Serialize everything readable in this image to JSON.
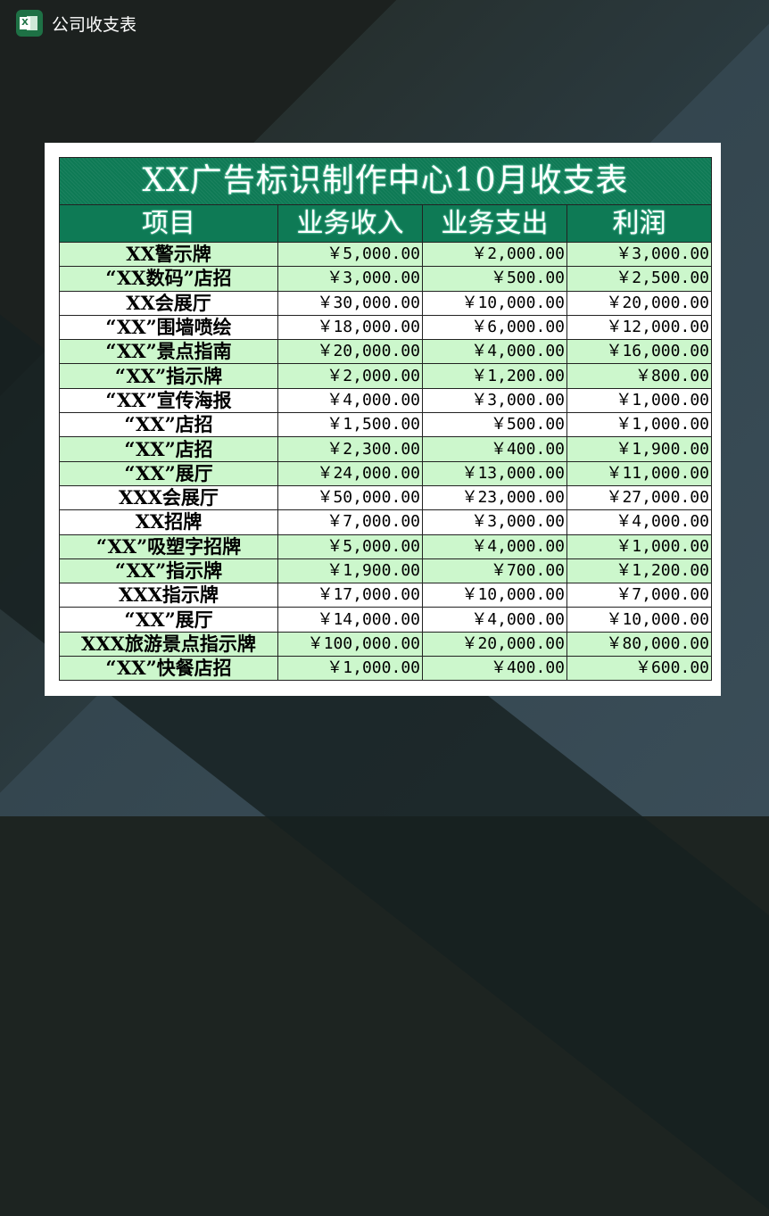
{
  "app": {
    "title": "公司收支表",
    "icon": "excel-icon"
  },
  "sheet": {
    "title": "XX广告标识制作中心10月收支表",
    "headers": [
      "项目",
      "业务收入",
      "业务支出",
      "利润"
    ],
    "rows": [
      [
        "XX警示牌",
        "￥5,000.00",
        "￥2,000.00",
        "￥3,000.00"
      ],
      [
        "“XX数码”店招",
        "￥3,000.00",
        "￥500.00",
        "￥2,500.00"
      ],
      [
        "XX会展厅",
        "￥30,000.00",
        "￥10,000.00",
        "￥20,000.00"
      ],
      [
        "“XX”围墙喷绘",
        "￥18,000.00",
        "￥6,000.00",
        "￥12,000.00"
      ],
      [
        "“XX”景点指南",
        "￥20,000.00",
        "￥4,000.00",
        "￥16,000.00"
      ],
      [
        "“XX”指示牌",
        "￥2,000.00",
        "￥1,200.00",
        "￥800.00"
      ],
      [
        "“XX”宣传海报",
        "￥4,000.00",
        "￥3,000.00",
        "￥1,000.00"
      ],
      [
        "“XX”店招",
        "￥1,500.00",
        "￥500.00",
        "￥1,000.00"
      ],
      [
        "“XX”店招",
        "￥2,300.00",
        "￥400.00",
        "￥1,900.00"
      ],
      [
        "“XX”展厅",
        "￥24,000.00",
        "￥13,000.00",
        "￥11,000.00"
      ],
      [
        "XXX会展厅",
        "￥50,000.00",
        "￥23,000.00",
        "￥27,000.00"
      ],
      [
        "XX招牌",
        "￥7,000.00",
        "￥3,000.00",
        "￥4,000.00"
      ],
      [
        "“XX”吸塑字招牌",
        "￥5,000.00",
        "￥4,000.00",
        "￥1,000.00"
      ],
      [
        "“XX”指示牌",
        "￥1,900.00",
        "￥700.00",
        "￥1,200.00"
      ],
      [
        "XXX指示牌",
        "￥17,000.00",
        "￥10,000.00",
        "￥7,000.00"
      ],
      [
        "“XX”展厅",
        "￥14,000.00",
        "￥4,000.00",
        "￥10,000.00"
      ],
      [
        "XXX旅游景点指示牌",
        "￥100,000.00",
        "￥20,000.00",
        "￥80,000.00"
      ],
      [
        "“XX”快餐店招",
        "￥1,000.00",
        "￥400.00",
        "￥600.00"
      ]
    ]
  },
  "colors": {
    "header": "#0e7a55",
    "row_green": "#ccf7cc",
    "row_white": "#ffffff"
  }
}
